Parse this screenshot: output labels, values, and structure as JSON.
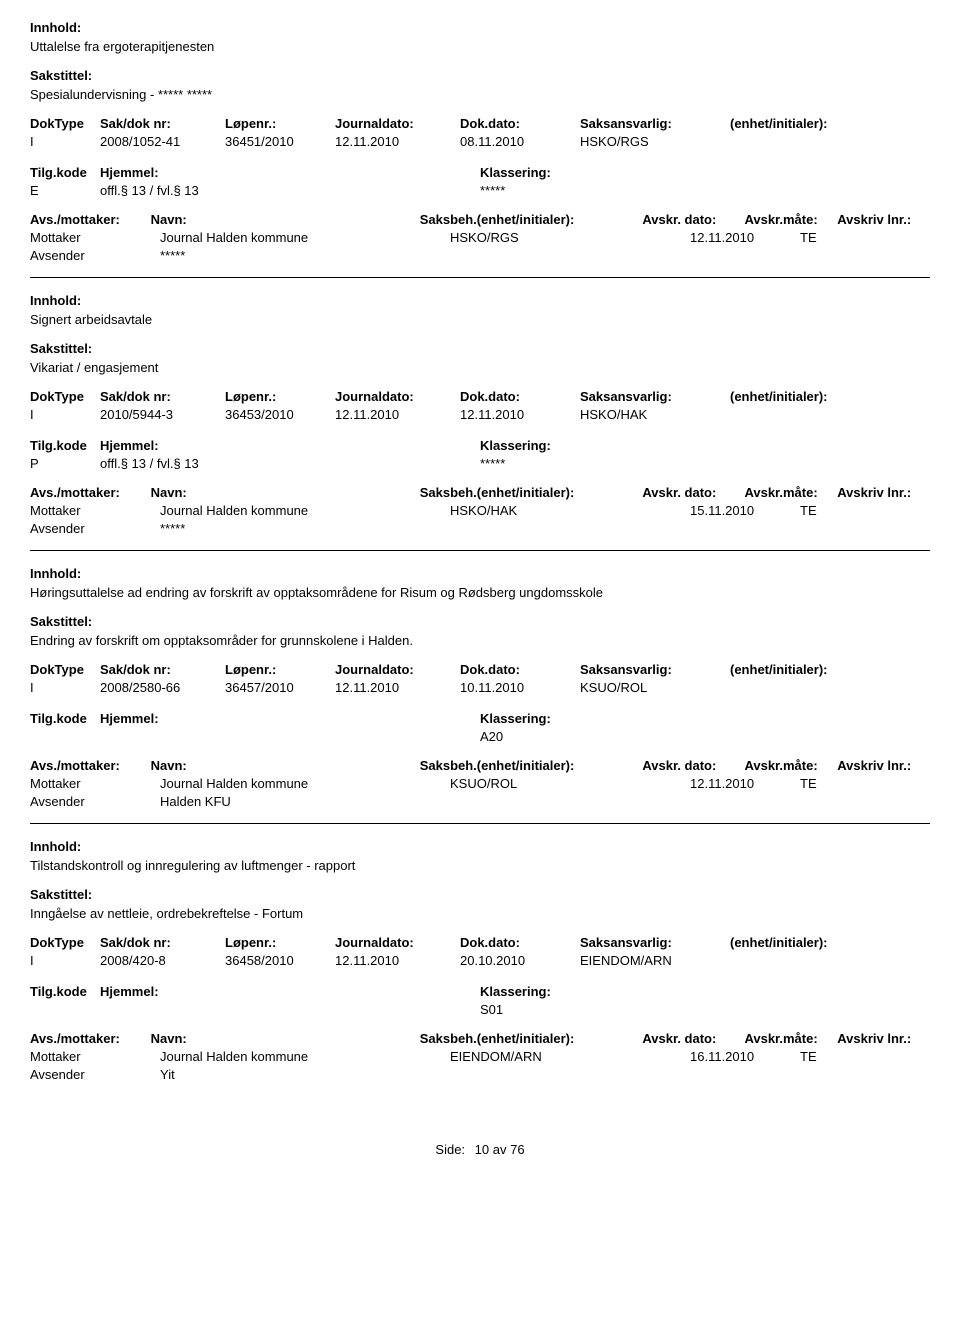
{
  "labels": {
    "innhold": "Innhold:",
    "sakstittel": "Sakstittel:",
    "doktype": "DokType",
    "sakdok": "Sak/dok nr:",
    "lopenr": "Løpenr.:",
    "journaldato": "Journaldato:",
    "dokdato": "Dok.dato:",
    "saksansvarlig": "Saksansvarlig:",
    "enhet": "(enhet/initialer):",
    "tilgkode": "Tilg.kode",
    "hjemmel": "Hjemmel:",
    "klassering": "Klassering:",
    "avsmottaker": "Avs./mottaker:",
    "navn": "Navn:",
    "saksbeh": "Saksbeh.(enhet/initialer):",
    "avskr_dato": "Avskr. dato:",
    "avskr_mate": "Avskr.måte:",
    "avskriv_lnr": "Avskriv lnr.:",
    "mottaker": "Mottaker",
    "avsender": "Avsender",
    "side": "Side:",
    "av": "av"
  },
  "records": [
    {
      "innhold": "Uttalelse fra ergoterapitjenesten",
      "sakstittel": "Spesialundervisning - ***** *****",
      "doktype": "I",
      "sakdok": "2008/1052-41",
      "lopenr": "36451/2010",
      "journaldato": "12.11.2010",
      "dokdato": "08.11.2010",
      "saksansvarlig": "HSKO/RGS",
      "tilgkode": "E",
      "hjemmel": "offl.§ 13 / fvl.§ 13",
      "klassering": "*****",
      "mottaker_navn": "Journal Halden kommune",
      "mottaker_saksbeh": "HSKO/RGS",
      "mottaker_avskr_dato": "12.11.2010",
      "mottaker_avskr_mate": "TE",
      "avsender_navn": "*****"
    },
    {
      "innhold": "Signert arbeidsavtale",
      "sakstittel": "Vikariat / engasjement",
      "doktype": "I",
      "sakdok": "2010/5944-3",
      "lopenr": "36453/2010",
      "journaldato": "12.11.2010",
      "dokdato": "12.11.2010",
      "saksansvarlig": "HSKO/HAK",
      "tilgkode": "P",
      "hjemmel": "offl.§ 13 / fvl.§ 13",
      "klassering": "*****",
      "mottaker_navn": "Journal Halden kommune",
      "mottaker_saksbeh": "HSKO/HAK",
      "mottaker_avskr_dato": "15.11.2010",
      "mottaker_avskr_mate": "TE",
      "avsender_navn": "*****"
    },
    {
      "innhold": "Høringsuttalelse ad endring av forskrift av opptaksområdene for Risum og Rødsberg ungdomsskole",
      "sakstittel": "Endring av forskrift om opptaksområder for grunnskolene i Halden.",
      "doktype": "I",
      "sakdok": "2008/2580-66",
      "lopenr": "36457/2010",
      "journaldato": "12.11.2010",
      "dokdato": "10.11.2010",
      "saksansvarlig": "KSUO/ROL",
      "tilgkode": "",
      "hjemmel": "",
      "klassering": "A20",
      "mottaker_navn": "Journal Halden kommune",
      "mottaker_saksbeh": "KSUO/ROL",
      "mottaker_avskr_dato": "12.11.2010",
      "mottaker_avskr_mate": "TE",
      "avsender_navn": "Halden KFU"
    },
    {
      "innhold": "Tilstandskontroll og innregulering av luftmenger - rapport",
      "sakstittel": "Inngåelse av nettleie, ordrebekreftelse - Fortum",
      "doktype": "I",
      "sakdok": "2008/420-8",
      "lopenr": "36458/2010",
      "journaldato": "12.11.2010",
      "dokdato": "20.10.2010",
      "saksansvarlig": "EIENDOM/ARN",
      "tilgkode": "",
      "hjemmel": "",
      "klassering": "S01",
      "mottaker_navn": "Journal Halden kommune",
      "mottaker_saksbeh": "EIENDOM/ARN",
      "mottaker_avskr_dato": "16.11.2010",
      "mottaker_avskr_mate": "TE",
      "avsender_navn": "Yit"
    }
  ],
  "footer": {
    "page": "10",
    "total": "76"
  }
}
